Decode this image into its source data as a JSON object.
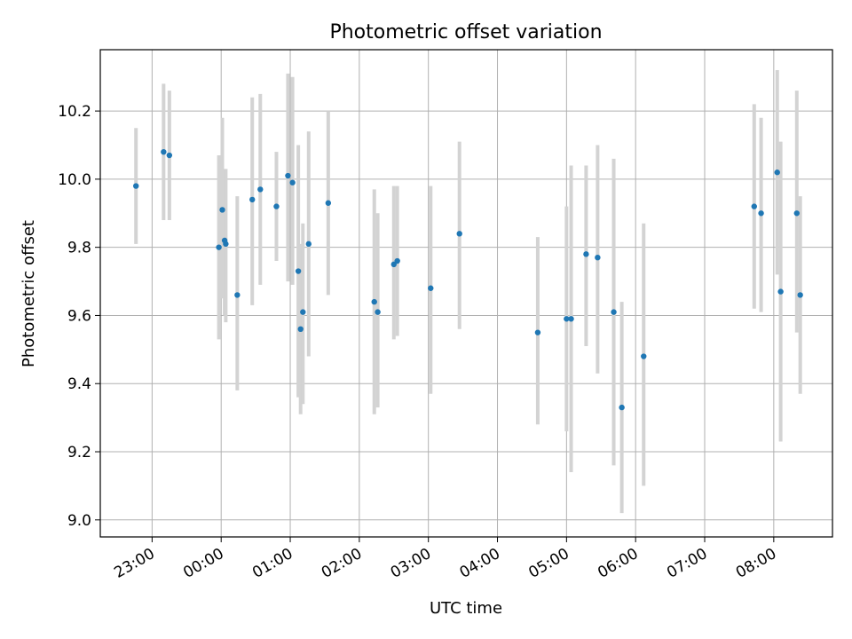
{
  "chart_data": {
    "type": "scatter",
    "title": "Photometric offset variation",
    "xlabel": "UTC time",
    "ylabel": "Photometric offset",
    "x_axis": "time",
    "xlim": [
      "22:15",
      "08:51"
    ],
    "ylim": [
      8.95,
      10.38
    ],
    "xticks": [
      "23:00",
      "00:00",
      "01:00",
      "02:00",
      "03:00",
      "04:00",
      "05:00",
      "05:00",
      "06:00",
      "07:00",
      "08:00"
    ],
    "xticks_unique": [
      "23:00",
      "00:00",
      "01:00",
      "02:00",
      "03:00",
      "04:00",
      "05:00",
      "06:00",
      "07:00",
      "08:00"
    ],
    "yticks": [
      9.0,
      9.2,
      9.4,
      9.6,
      9.8,
      10.0,
      10.2
    ],
    "grid": true,
    "point_color": "#1f77b4",
    "errorbar_color": "#d3d3d3",
    "points": [
      {
        "x": "22:46",
        "y": 9.98,
        "lo": 9.81,
        "hi": 10.15
      },
      {
        "x": "23:10",
        "y": 10.08,
        "lo": 9.88,
        "hi": 10.28
      },
      {
        "x": "23:15",
        "y": 10.07,
        "lo": 9.88,
        "hi": 10.26
      },
      {
        "x": "23:58",
        "y": 9.8,
        "lo": 9.53,
        "hi": 10.07
      },
      {
        "x": "00:01",
        "y": 9.91,
        "lo": 9.65,
        "hi": 10.18
      },
      {
        "x": "00:03",
        "y": 9.82,
        "lo": 9.6,
        "hi": 10.03
      },
      {
        "x": "00:04",
        "y": 9.81,
        "lo": 9.58,
        "hi": 10.03
      },
      {
        "x": "00:14",
        "y": 9.66,
        "lo": 9.38,
        "hi": 9.95
      },
      {
        "x": "00:27",
        "y": 9.94,
        "lo": 9.63,
        "hi": 10.24
      },
      {
        "x": "00:34",
        "y": 9.97,
        "lo": 9.69,
        "hi": 10.25
      },
      {
        "x": "00:48",
        "y": 9.92,
        "lo": 9.76,
        "hi": 10.08
      },
      {
        "x": "00:58",
        "y": 10.01,
        "lo": 9.7,
        "hi": 10.31
      },
      {
        "x": "01:02",
        "y": 9.99,
        "lo": 9.69,
        "hi": 10.3
      },
      {
        "x": "01:07",
        "y": 9.73,
        "lo": 9.36,
        "hi": 10.1
      },
      {
        "x": "01:09",
        "y": 9.56,
        "lo": 9.31,
        "hi": 9.81
      },
      {
        "x": "01:11",
        "y": 9.61,
        "lo": 9.34,
        "hi": 9.87
      },
      {
        "x": "01:16",
        "y": 9.81,
        "lo": 9.48,
        "hi": 10.14
      },
      {
        "x": "01:33",
        "y": 9.93,
        "lo": 9.66,
        "hi": 10.2
      },
      {
        "x": "02:13",
        "y": 9.64,
        "lo": 9.31,
        "hi": 9.97
      },
      {
        "x": "02:16",
        "y": 9.61,
        "lo": 9.33,
        "hi": 9.9
      },
      {
        "x": "02:30",
        "y": 9.75,
        "lo": 9.53,
        "hi": 9.98
      },
      {
        "x": "02:33",
        "y": 9.76,
        "lo": 9.54,
        "hi": 9.98
      },
      {
        "x": "03:02",
        "y": 9.68,
        "lo": 9.37,
        "hi": 9.98
      },
      {
        "x": "03:27",
        "y": 9.84,
        "lo": 9.56,
        "hi": 10.11
      },
      {
        "x": "04:35",
        "y": 9.55,
        "lo": 9.28,
        "hi": 9.83
      },
      {
        "x": "05:00",
        "y": 9.59,
        "lo": 9.26,
        "hi": 9.92
      },
      {
        "x": "05:04",
        "y": 9.59,
        "lo": 9.14,
        "hi": 10.04
      },
      {
        "x": "05:17",
        "y": 9.78,
        "lo": 9.51,
        "hi": 10.04
      },
      {
        "x": "05:27",
        "y": 9.77,
        "lo": 9.43,
        "hi": 10.1
      },
      {
        "x": "05:41",
        "y": 9.61,
        "lo": 9.16,
        "hi": 10.06
      },
      {
        "x": "05:48",
        "y": 9.33,
        "lo": 9.02,
        "hi": 9.64
      },
      {
        "x": "06:07",
        "y": 9.48,
        "lo": 9.1,
        "hi": 9.87
      },
      {
        "x": "07:43",
        "y": 9.92,
        "lo": 9.62,
        "hi": 10.22
      },
      {
        "x": "07:49",
        "y": 9.9,
        "lo": 9.61,
        "hi": 10.18
      },
      {
        "x": "08:03",
        "y": 10.02,
        "lo": 9.72,
        "hi": 10.32
      },
      {
        "x": "08:06",
        "y": 9.67,
        "lo": 9.23,
        "hi": 10.11
      },
      {
        "x": "08:20",
        "y": 9.9,
        "lo": 9.55,
        "hi": 10.26
      },
      {
        "x": "08:23",
        "y": 9.66,
        "lo": 9.37,
        "hi": 9.95
      }
    ]
  }
}
